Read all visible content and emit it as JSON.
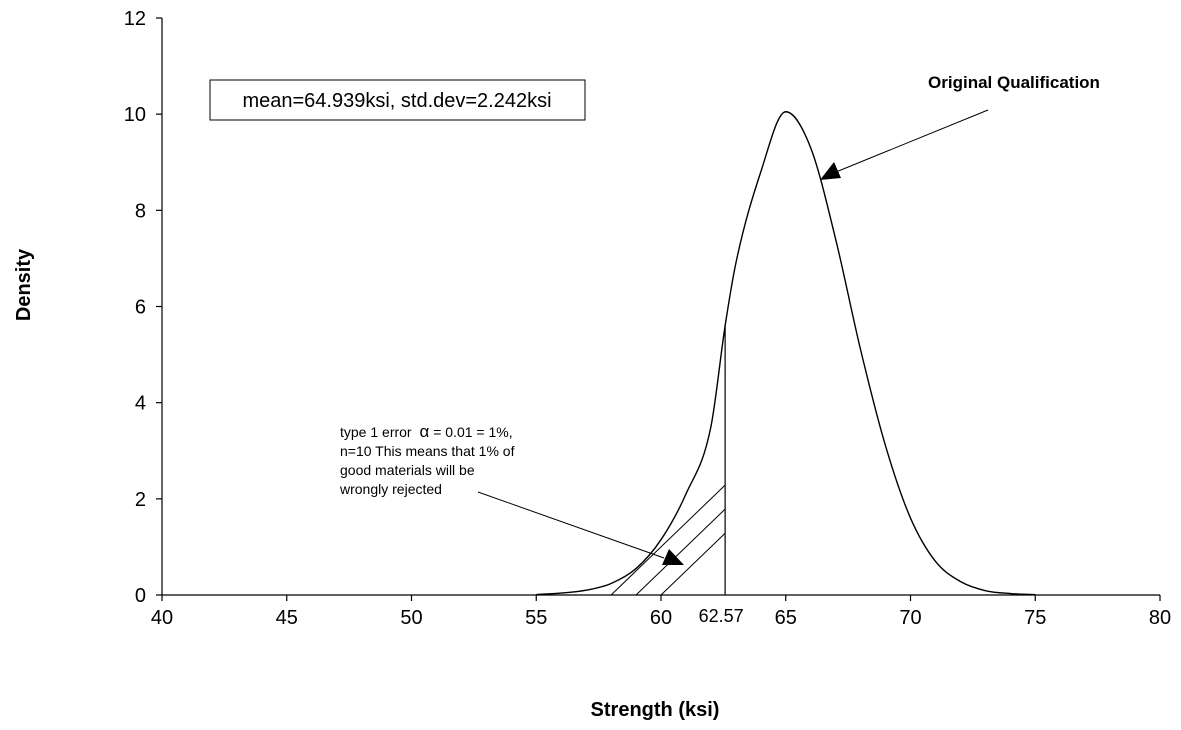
{
  "chart_data": {
    "type": "line",
    "title": "",
    "xlabel": "Strength (ksi)",
    "ylabel": "Density",
    "xlim": [
      40,
      80
    ],
    "ylim": [
      0,
      12
    ],
    "x_ticks": [
      "40",
      "45",
      "50",
      "55",
      "60",
      "65",
      "70",
      "75",
      "80"
    ],
    "y_ticks": [
      "0",
      "2",
      "4",
      "6",
      "8",
      "10",
      "12"
    ],
    "grid": false,
    "legend": "none",
    "series": [
      {
        "x": [
          55,
          56,
          57,
          58,
          59,
          60,
          61,
          62,
          62.57,
          63,
          64,
          65,
          66,
          67,
          68,
          69,
          70,
          71,
          72,
          73,
          74,
          75
        ],
        "y": [
          0.01,
          0.04,
          0.1,
          0.24,
          0.55,
          1.15,
          2.1,
          3.5,
          5.6,
          6.9,
          8.8,
          10.05,
          9.3,
          7.4,
          5.1,
          3.1,
          1.6,
          0.7,
          0.28,
          0.09,
          0.03,
          0.01
        ]
      }
    ],
    "critical_value": {
      "x": 62.57,
      "label": "62.57"
    },
    "stats_box": "mean=64.939ksi, std.dev=2.242ksi",
    "curve_annotation": "Original Qualification",
    "error_annotation": [
      "type 1 error",
      "α",
      "= 0.01 = 1%,",
      "n=10  This means that 1% of",
      "good materials will be",
      "wrongly rejected"
    ]
  }
}
